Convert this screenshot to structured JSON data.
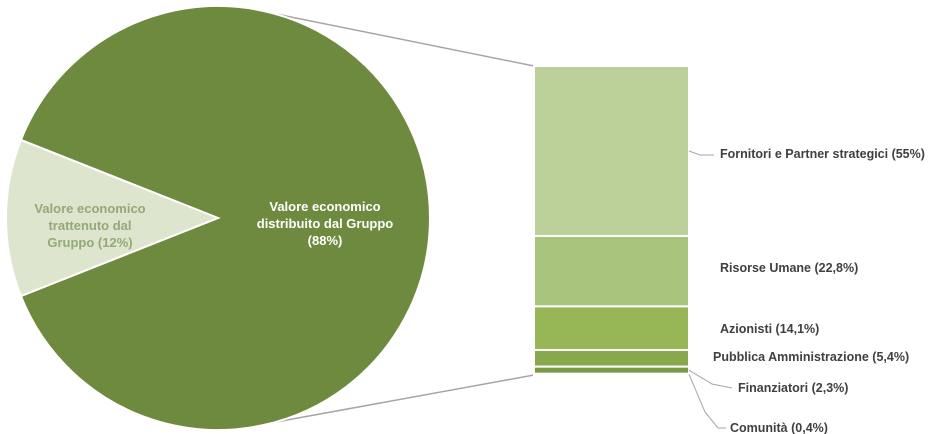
{
  "chart_data": {
    "type": "bar-of-pie",
    "pie": {
      "slices": [
        {
          "label_lines": [
            "Valore economico",
            "distribuito dal Gruppo",
            "(88%)"
          ],
          "value": 88,
          "color": "#6e8a3e",
          "label_color": "#ffffff"
        },
        {
          "label_lines": [
            "Valore economico",
            "trattenuto dal",
            "Gruppo  (12%)"
          ],
          "value": 12,
          "color": "#dde5cf",
          "label_color": "#95a876"
        }
      ]
    },
    "bar": {
      "segments": [
        {
          "label": "Fornitori e Partner strategici (55%)",
          "value": 55,
          "color": "#bcd09a"
        },
        {
          "label": "Risorse Umane (22,8%)",
          "value": 22.8,
          "color": "#a9c47c"
        },
        {
          "label": "Azionisti (14,1%)",
          "value": 14.1,
          "color": "#97b757"
        },
        {
          "label": "Pubblica Amministrazione (5,4%)",
          "value": 5.4,
          "color": "#88a84e"
        },
        {
          "label": "Finanziatori (2,3%)",
          "value": 2.3,
          "color": "#7a9945"
        },
        {
          "label": "Comunità (0,4%)",
          "value": 0.4,
          "color": "#6e8a3e"
        }
      ]
    },
    "connector_color": "#a6a6a6",
    "label_color": "#404040"
  }
}
